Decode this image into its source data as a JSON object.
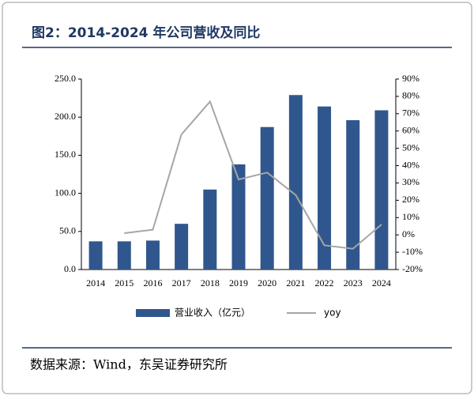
{
  "chart_data": {
    "type": "bar",
    "title": "图2：2014-2024 年公司营收及同比",
    "source": "数据来源：Wind，东吴证券研究所",
    "categories": [
      "2014",
      "2015",
      "2016",
      "2017",
      "2018",
      "2019",
      "2020",
      "2021",
      "2022",
      "2023",
      "2024"
    ],
    "series": [
      {
        "name": "营业收入（亿元）",
        "type": "bar",
        "color": "#30578d",
        "values": [
          37,
          37,
          38,
          60,
          105,
          138,
          187,
          229,
          214,
          196,
          209
        ]
      },
      {
        "name": "yoy",
        "type": "line",
        "axis": "y2",
        "color": "#a6a6a6",
        "values": [
          null,
          1,
          3,
          58,
          77,
          32,
          36,
          23,
          -6,
          -8,
          6
        ]
      }
    ],
    "ylim": [
      0,
      250
    ],
    "yticks": [
      {
        "value": 0,
        "label": "0.0"
      },
      {
        "value": 50,
        "label": "50.0"
      },
      {
        "value": 100,
        "label": "100.0"
      },
      {
        "value": 150,
        "label": "150.0"
      },
      {
        "value": 200,
        "label": "200.0"
      },
      {
        "value": 250,
        "label": "250.0"
      }
    ],
    "y2lim": [
      -20,
      90
    ],
    "y2ticks": [
      {
        "value": -20,
        "label": "-20%"
      },
      {
        "value": -10,
        "label": "-10%"
      },
      {
        "value": 0,
        "label": "0%"
      },
      {
        "value": 10,
        "label": "10%"
      },
      {
        "value": 20,
        "label": "20%"
      },
      {
        "value": 30,
        "label": "30%"
      },
      {
        "value": 40,
        "label": "40%"
      },
      {
        "value": 50,
        "label": "50%"
      },
      {
        "value": 60,
        "label": "60%"
      },
      {
        "value": 70,
        "label": "70%"
      },
      {
        "value": 80,
        "label": "80%"
      },
      {
        "value": 90,
        "label": "90%"
      }
    ],
    "grid": false
  }
}
